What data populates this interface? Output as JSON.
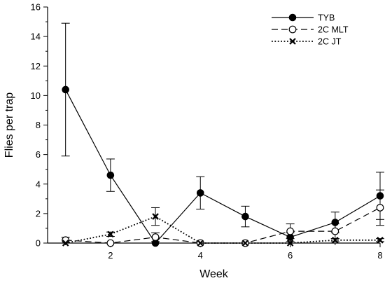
{
  "chart_data": {
    "type": "line",
    "xlabel": "Week",
    "ylabel": "Flies per trap",
    "xlim": [
      0.6,
      8
    ],
    "ylim": [
      0,
      16
    ],
    "xticks": [
      2,
      4,
      6,
      8
    ],
    "yticks": [
      0,
      2,
      4,
      6,
      8,
      10,
      12,
      14,
      16
    ],
    "grid": false,
    "legend_position": "top-right",
    "x": [
      1,
      2,
      3,
      4,
      5,
      6,
      7,
      8
    ],
    "series": [
      {
        "name": "TYB",
        "marker": "filled-circle",
        "line": "solid",
        "values": [
          10.4,
          4.6,
          0.0,
          3.4,
          1.8,
          0.4,
          1.4,
          3.2
        ],
        "err": [
          4.5,
          1.1,
          0.0,
          1.1,
          0.7,
          0.3,
          0.7,
          1.6
        ]
      },
      {
        "name": "2C MLT",
        "marker": "open-circle",
        "line": "dashed",
        "values": [
          0.2,
          0.0,
          0.4,
          0.0,
          0.0,
          0.8,
          0.8,
          2.4
        ],
        "err": [
          0.2,
          0.0,
          0.3,
          0.0,
          0.0,
          0.5,
          0.5,
          1.2
        ]
      },
      {
        "name": "2C JT",
        "marker": "x",
        "line": "dotted",
        "values": [
          0.0,
          0.6,
          1.8,
          0.0,
          0.0,
          0.0,
          0.2,
          0.2
        ],
        "err": [
          0.0,
          0.15,
          0.6,
          0.0,
          0.0,
          0.0,
          0.1,
          0.1
        ]
      }
    ]
  }
}
